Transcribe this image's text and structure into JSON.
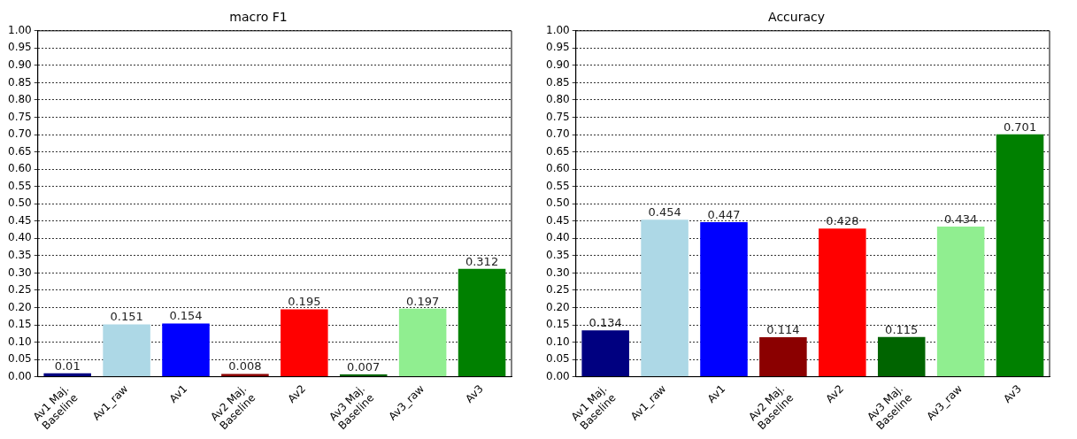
{
  "chart_data": [
    {
      "type": "bar",
      "title": "macro F1",
      "categories": [
        "Av1 Maj.\nBaseline",
        "Av1_raw",
        "Av1",
        "Av2 Maj.\nBaseline",
        "Av2",
        "Av3 Maj.\nBaseline",
        "Av3_raw",
        "Av3"
      ],
      "values": [
        0.01,
        0.151,
        0.154,
        0.008,
        0.195,
        0.007,
        0.197,
        0.312
      ],
      "colors": [
        "#000080",
        "#add8e6",
        "#0000ff",
        "#8b0000",
        "#ff0000",
        "#006400",
        "#90ee90",
        "#008000"
      ],
      "ylim": [
        0,
        1
      ],
      "yticks": [
        {
          "value": 0,
          "label": "0.00"
        },
        {
          "value": 0.05,
          "label": "0.05"
        },
        {
          "value": 0.1,
          "label": "0.10"
        },
        {
          "value": 0.15,
          "label": "0.15"
        },
        {
          "value": 0.2,
          "label": "0.20"
        },
        {
          "value": 0.25,
          "label": "0.25"
        },
        {
          "value": 0.3,
          "label": "0.30"
        },
        {
          "value": 0.35,
          "label": "0.35"
        },
        {
          "value": 0.4,
          "label": "0.40"
        },
        {
          "value": 0.45,
          "label": "0.45"
        },
        {
          "value": 0.5,
          "label": "0.50"
        },
        {
          "value": 0.55,
          "label": "0.55"
        },
        {
          "value": 0.6,
          "label": "0.60"
        },
        {
          "value": 0.65,
          "label": "0.65"
        },
        {
          "value": 0.7,
          "label": "0.70"
        },
        {
          "value": 0.75,
          "label": "0.75"
        },
        {
          "value": 0.8,
          "label": "0.80"
        },
        {
          "value": 0.85,
          "label": "0.85"
        },
        {
          "value": 0.9,
          "label": "0.90"
        },
        {
          "value": 0.95,
          "label": "0.95"
        },
        {
          "value": 1,
          "label": "1.00"
        }
      ],
      "grid": "y",
      "data_labels": true,
      "legend": false
    },
    {
      "type": "bar",
      "title": "Accuracy",
      "categories": [
        "Av1 Maj.\nBaseline",
        "Av1_raw",
        "Av1",
        "Av2 Maj.\nBaseline",
        "Av2",
        "Av3 Maj.\nBaseline",
        "Av3_raw",
        "Av3"
      ],
      "values": [
        0.134,
        0.454,
        0.447,
        0.114,
        0.428,
        0.115,
        0.434,
        0.701
      ],
      "colors": [
        "#000080",
        "#add8e6",
        "#0000ff",
        "#8b0000",
        "#ff0000",
        "#006400",
        "#90ee90",
        "#008000"
      ],
      "ylim": [
        0,
        1
      ],
      "yticks": [
        {
          "value": 0,
          "label": "0.00"
        },
        {
          "value": 0.05,
          "label": "0.05"
        },
        {
          "value": 0.1,
          "label": "0.10"
        },
        {
          "value": 0.15,
          "label": "0.15"
        },
        {
          "value": 0.2,
          "label": "0.20"
        },
        {
          "value": 0.25,
          "label": "0.25"
        },
        {
          "value": 0.3,
          "label": "0.30"
        },
        {
          "value": 0.35,
          "label": "0.35"
        },
        {
          "value": 0.4,
          "label": "0.40"
        },
        {
          "value": 0.45,
          "label": "0.45"
        },
        {
          "value": 0.5,
          "label": "0.50"
        },
        {
          "value": 0.55,
          "label": "0.55"
        },
        {
          "value": 0.6,
          "label": "0.60"
        },
        {
          "value": 0.65,
          "label": "0.65"
        },
        {
          "value": 0.7,
          "label": "0.70"
        },
        {
          "value": 0.75,
          "label": "0.75"
        },
        {
          "value": 0.8,
          "label": "0.80"
        },
        {
          "value": 0.85,
          "label": "0.85"
        },
        {
          "value": 0.9,
          "label": "0.90"
        },
        {
          "value": 0.95,
          "label": "0.95"
        },
        {
          "value": 1,
          "label": "1.00"
        }
      ],
      "grid": "y",
      "data_labels": true,
      "legend": false
    }
  ]
}
